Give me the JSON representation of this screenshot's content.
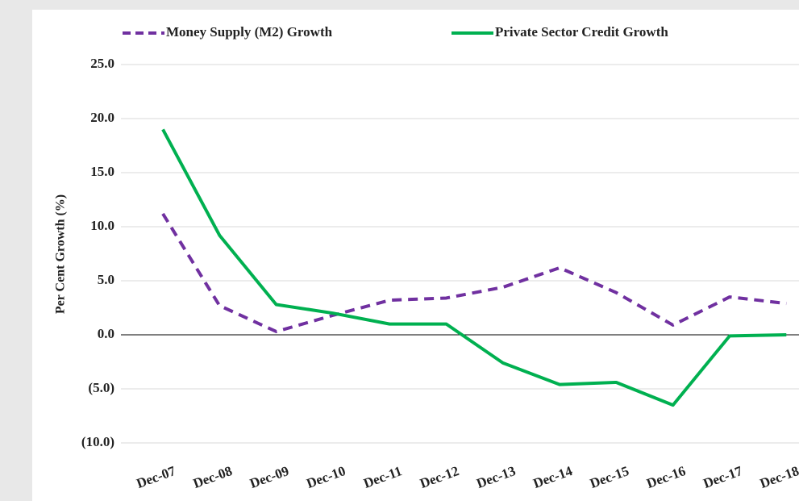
{
  "chart_data": {
    "type": "line",
    "y_label": "Per Cent Growth (%)",
    "categories": [
      "Dec-07",
      "Dec-08",
      "Dec-09",
      "Dec-10",
      "Dec-11",
      "Dec-12",
      "Dec-13",
      "Dec-14",
      "Dec-15",
      "Dec-16",
      "Dec-17",
      "Dec-18"
    ],
    "series": [
      {
        "name": "Money Supply (M2) Growth",
        "color": "#7030a0",
        "dashed": true,
        "values": [
          11.2,
          2.7,
          0.3,
          1.8,
          3.2,
          3.4,
          4.4,
          6.2,
          3.9,
          0.9,
          3.5,
          2.9
        ]
      },
      {
        "name": "Private Sector Credit Growth",
        "color": "#00b050",
        "dashed": false,
        "values": [
          19.0,
          9.2,
          2.8,
          2.0,
          1.0,
          1.0,
          -2.6,
          -4.6,
          -4.4,
          -6.5,
          -0.1,
          0.0
        ]
      }
    ],
    "ylim": [
      -10,
      25
    ],
    "yticks": [
      {
        "value": -10,
        "label": "(10.0)"
      },
      {
        "value": -5,
        "label": "(5.0)"
      },
      {
        "value": 0,
        "label": "0.0"
      },
      {
        "value": 5,
        "label": "5.0"
      },
      {
        "value": 10,
        "label": "10.0"
      },
      {
        "value": 15,
        "label": "15.0"
      },
      {
        "value": 20,
        "label": "20.0"
      },
      {
        "value": 25,
        "label": "25.0"
      }
    ],
    "grid": true
  }
}
